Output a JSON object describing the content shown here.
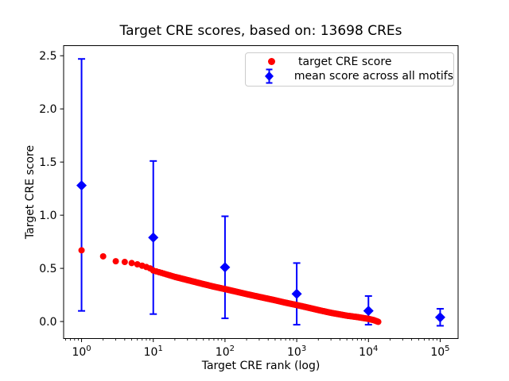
{
  "chart_data": {
    "type": "scatter",
    "title": "Target CRE scores, based on: 13698 CREs",
    "xlabel": "Target CRE rank (log)",
    "ylabel": "Target CRE score",
    "xscale": "log",
    "xlim": [
      0.5623413251903491,
      177827.94100389228
    ],
    "ylim": [
      -0.16,
      2.595
    ],
    "grid": false,
    "xticks": [
      {
        "v": 1,
        "base": "10",
        "exp": "0"
      },
      {
        "v": 10,
        "base": "10",
        "exp": "1"
      },
      {
        "v": 100,
        "base": "10",
        "exp": "2"
      },
      {
        "v": 1000,
        "base": "10",
        "exp": "3"
      },
      {
        "v": 10000,
        "base": "10",
        "exp": "4"
      },
      {
        "v": 100000,
        "base": "10",
        "exp": "5"
      }
    ],
    "yticks": [
      {
        "v": 0.0,
        "label": "0.0"
      },
      {
        "v": 0.5,
        "label": "0.5"
      },
      {
        "v": 1.0,
        "label": "1.0"
      },
      {
        "v": 1.5,
        "label": "1.5"
      },
      {
        "v": 2.0,
        "label": "2.0"
      },
      {
        "v": 2.5,
        "label": "2.5"
      }
    ],
    "legend": {
      "position": "upper right",
      "entries": [
        {
          "label": "target CRE score",
          "color": "#ff0000",
          "marker": "circle"
        },
        {
          "label": "mean score across all motifs",
          "color": "#0000ff",
          "marker": "diamond-with-errorbar"
        }
      ]
    },
    "series": [
      {
        "name": "target CRE score",
        "type": "dense-scatter",
        "color": "#ff0000",
        "marker": "circle",
        "marker_diameter_px": 8,
        "n_points": 13698,
        "points_sample": [
          [
            1,
            0.67
          ],
          [
            2,
            0.613
          ],
          [
            3,
            0.567
          ],
          [
            4,
            0.56
          ],
          [
            5,
            0.55
          ],
          [
            6,
            0.538
          ],
          [
            7,
            0.525
          ],
          [
            8,
            0.513
          ],
          [
            9,
            0.5
          ],
          [
            10,
            0.48
          ],
          [
            15,
            0.445
          ],
          [
            20,
            0.42
          ],
          [
            30,
            0.39
          ],
          [
            50,
            0.352
          ],
          [
            70,
            0.328
          ],
          [
            100,
            0.305
          ],
          [
            150,
            0.278
          ],
          [
            200,
            0.258
          ],
          [
            300,
            0.232
          ],
          [
            500,
            0.2
          ],
          [
            700,
            0.177
          ],
          [
            1000,
            0.155
          ],
          [
            1500,
            0.128
          ],
          [
            2000,
            0.108
          ],
          [
            3000,
            0.082
          ],
          [
            5000,
            0.055
          ],
          [
            7000,
            0.042
          ],
          [
            10000,
            0.025
          ],
          [
            12000,
            0.012
          ],
          [
            13698,
            -0.003
          ]
        ]
      },
      {
        "name": "mean score across all motifs",
        "type": "errorbar",
        "color": "#0000ff",
        "marker": "diamond",
        "points": [
          {
            "x": 1,
            "y": 1.28,
            "ylo": 0.1,
            "yhi": 2.47
          },
          {
            "x": 10,
            "y": 0.79,
            "ylo": 0.07,
            "yhi": 1.51
          },
          {
            "x": 100,
            "y": 0.51,
            "ylo": 0.03,
            "yhi": 0.99
          },
          {
            "x": 1000,
            "y": 0.26,
            "ylo": -0.03,
            "yhi": 0.55
          },
          {
            "x": 10000,
            "y": 0.1,
            "ylo": -0.03,
            "yhi": 0.24
          },
          {
            "x": 100000,
            "y": 0.04,
            "ylo": -0.04,
            "yhi": 0.12
          }
        ]
      }
    ]
  }
}
